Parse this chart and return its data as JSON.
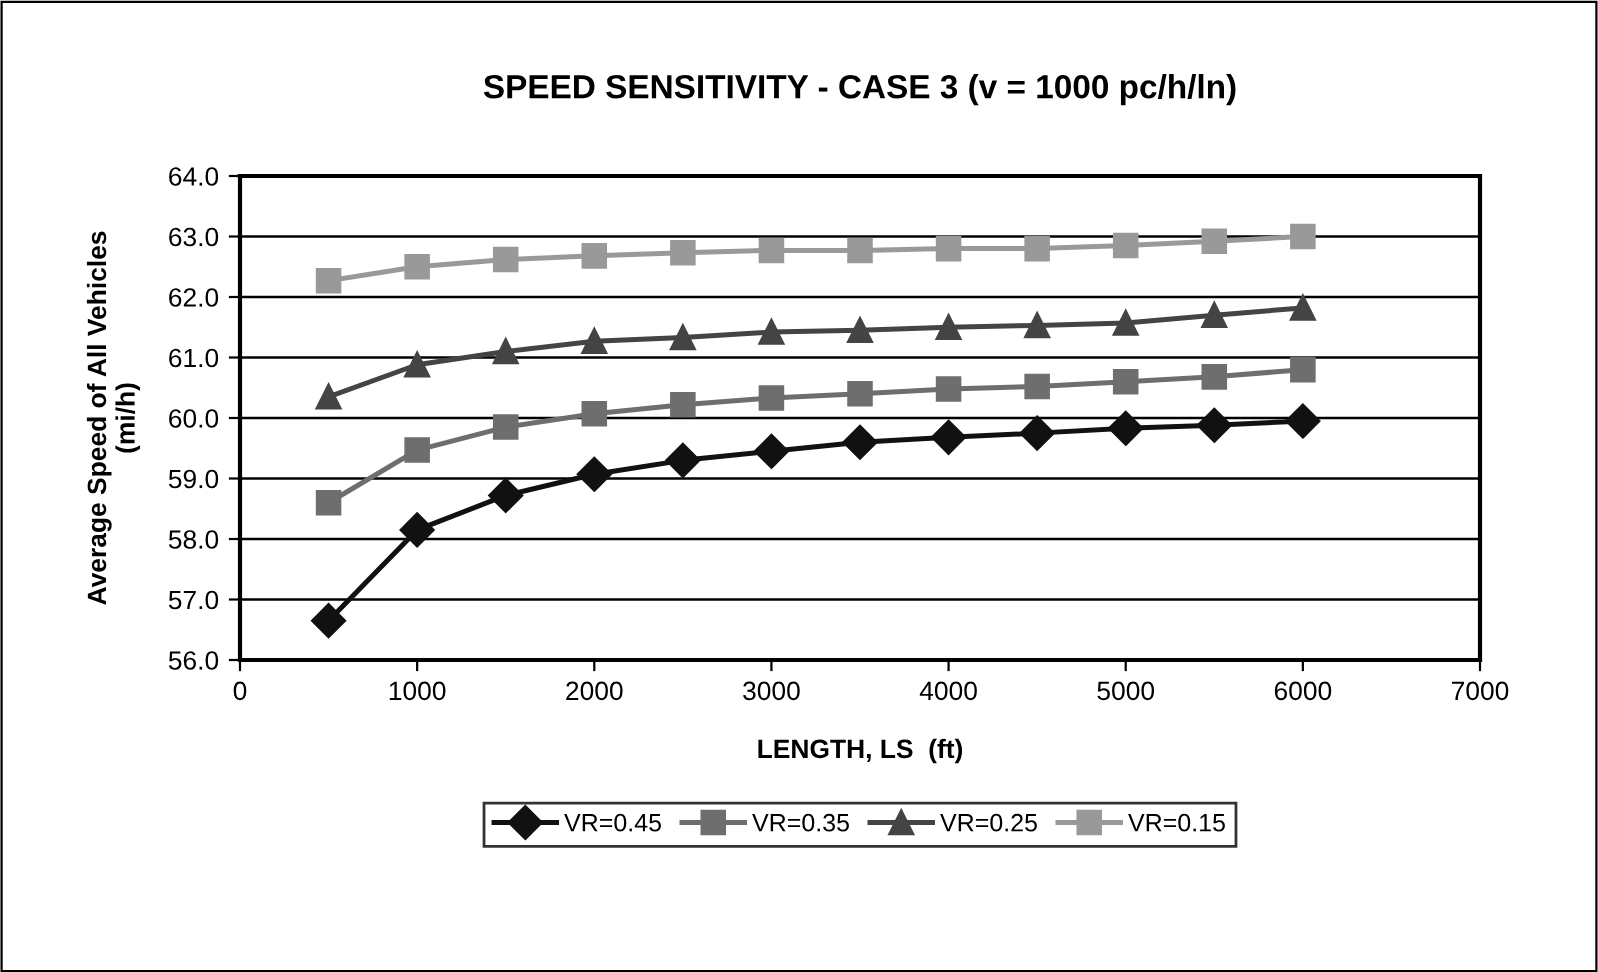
{
  "chart_data": {
    "type": "line",
    "title": "SPEED SENSITIVITY - CASE 3 (v = 1000 pc/h/ln)",
    "xlabel": "LENGTH, LS  (ft)",
    "ylabel": "Average Speed of All Vehicles\n(mi/h)",
    "x": [
      500,
      1000,
      1500,
      2000,
      2500,
      3000,
      3500,
      4000,
      4500,
      5000,
      5500,
      6000
    ],
    "series": [
      {
        "name": "VR=0.45",
        "color": "#111111",
        "marker": "diamond",
        "values": [
          56.65,
          58.15,
          58.72,
          59.07,
          59.3,
          59.45,
          59.6,
          59.68,
          59.75,
          59.83,
          59.88,
          59.95
        ]
      },
      {
        "name": "VR=0.35",
        "color": "#6e6e6e",
        "marker": "square",
        "values": [
          58.6,
          59.47,
          59.85,
          60.07,
          60.22,
          60.33,
          60.4,
          60.48,
          60.52,
          60.6,
          60.68,
          60.8
        ]
      },
      {
        "name": "VR=0.25",
        "color": "#444444",
        "marker": "triangle",
        "values": [
          60.35,
          60.88,
          61.1,
          61.27,
          61.33,
          61.42,
          61.45,
          61.5,
          61.53,
          61.57,
          61.7,
          61.82
        ]
      },
      {
        "name": "VR=0.15",
        "color": "#999999",
        "marker": "square",
        "values": [
          62.27,
          62.5,
          62.62,
          62.68,
          62.73,
          62.77,
          62.77,
          62.8,
          62.8,
          62.85,
          62.92,
          63.0
        ]
      }
    ],
    "xlim": [
      0,
      7000
    ],
    "xticks": [
      0,
      1000,
      2000,
      3000,
      4000,
      5000,
      6000,
      7000
    ],
    "ylim": [
      56,
      64
    ],
    "yticks": [
      {
        "value": 56,
        "label": "56.0"
      },
      {
        "value": 57,
        "label": "57.0"
      },
      {
        "value": 58,
        "label": "58.0"
      },
      {
        "value": 59,
        "label": "59.0"
      },
      {
        "value": 60,
        "label": "60.0"
      },
      {
        "value": 61,
        "label": "61.0"
      },
      {
        "value": 62,
        "label": "62.0"
      },
      {
        "value": 63,
        "label": "63.0"
      },
      {
        "value": 64,
        "label": "64.0"
      }
    ],
    "grid": "y",
    "legend": "bottom"
  }
}
